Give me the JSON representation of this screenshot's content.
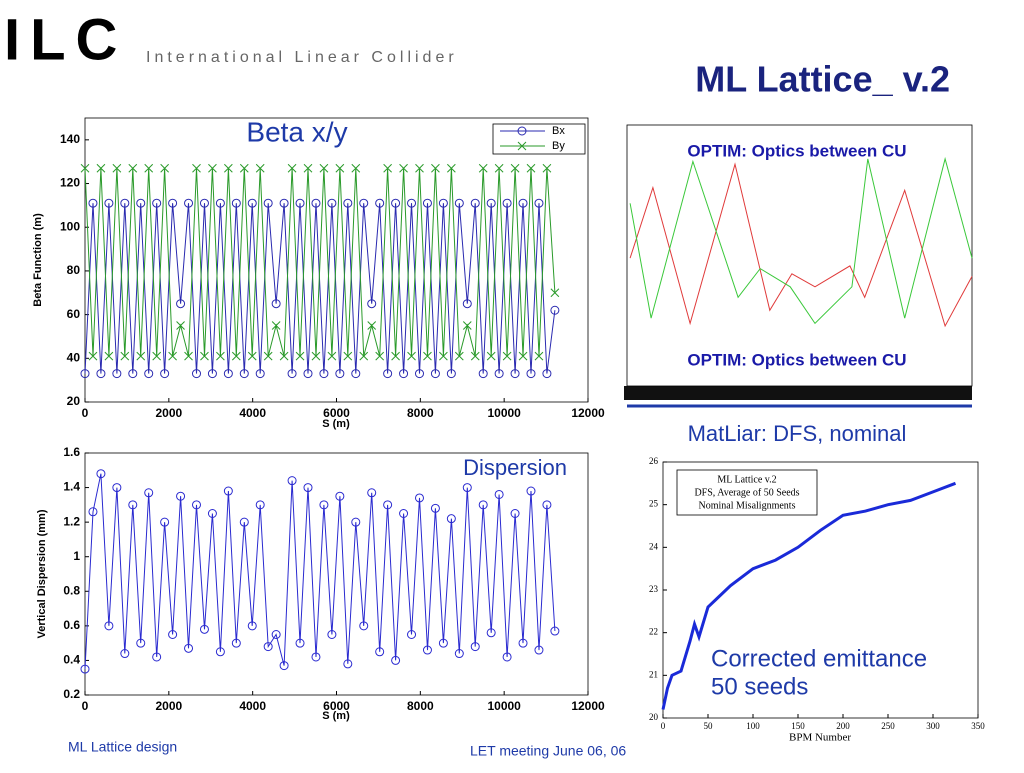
{
  "header": {
    "logo": "ILC",
    "subtitle": "International Linear Collider",
    "title": "ML Lattice_ v.2"
  },
  "footer": {
    "left": "ML Lattice design",
    "center": "LET meeting June 06, 06"
  },
  "chart_data": [
    {
      "type": "line",
      "title": "Beta x/y",
      "xlabel": "S (m)",
      "ylabel": "Beta Function (m)",
      "xlim": [
        0,
        12000
      ],
      "xticks": [
        0,
        2000,
        4000,
        6000,
        8000,
        10000,
        12000
      ],
      "ylim": [
        20,
        150
      ],
      "yticks": [
        20,
        40,
        60,
        80,
        100,
        120,
        140
      ],
      "x": [
        0,
        190,
        380,
        570,
        760,
        950,
        1140,
        1330,
        1520,
        1710,
        1900,
        2090,
        2280,
        2470,
        2660,
        2850,
        3040,
        3230,
        3420,
        3610,
        3800,
        3990,
        4180,
        4370,
        4560,
        4750,
        4940,
        5130,
        5320,
        5510,
        5700,
        5890,
        6080,
        6270,
        6460,
        6650,
        6840,
        7030,
        7220,
        7410,
        7600,
        7790,
        7980,
        8170,
        8360,
        8550,
        8740,
        8930,
        9120,
        9310,
        9500,
        9690,
        9880,
        10070,
        10260,
        10450,
        10640,
        10830,
        11020,
        11210
      ],
      "series": [
        {
          "name": "Bx",
          "color": "#2a2ab0",
          "marker": "o",
          "values": [
            33,
            111,
            33,
            111,
            33,
            111,
            33,
            111,
            33,
            111,
            33,
            111,
            65,
            111,
            33,
            111,
            33,
            111,
            33,
            111,
            33,
            111,
            33,
            111,
            65,
            111,
            33,
            111,
            33,
            111,
            33,
            111,
            33,
            111,
            33,
            111,
            65,
            111,
            33,
            111,
            33,
            111,
            33,
            111,
            33,
            111,
            33,
            111,
            65,
            111,
            33,
            111,
            33,
            111,
            33,
            111,
            33,
            111,
            33,
            62
          ]
        },
        {
          "name": "By",
          "color": "#2a9a2a",
          "marker": "x",
          "values": [
            127,
            41,
            127,
            41,
            127,
            41,
            127,
            41,
            127,
            41,
            127,
            41,
            55,
            41,
            127,
            41,
            127,
            41,
            127,
            41,
            127,
            41,
            127,
            41,
            55,
            41,
            127,
            41,
            127,
            41,
            127,
            41,
            127,
            41,
            127,
            41,
            55,
            41,
            127,
            41,
            127,
            41,
            127,
            41,
            127,
            41,
            127,
            41,
            55,
            41,
            127,
            41,
            127,
            41,
            127,
            41,
            127,
            41,
            127,
            70
          ]
        }
      ]
    },
    {
      "type": "line",
      "title": "Dispersion",
      "xlabel": "S (m)",
      "ylabel": "Vertical Dispersion (mm)",
      "xlim": [
        0,
        12000
      ],
      "xticks": [
        0,
        2000,
        4000,
        6000,
        8000,
        10000,
        12000
      ],
      "ylim": [
        0.2,
        1.6
      ],
      "yticks": [
        0.2,
        0.4,
        0.6,
        0.8,
        1,
        1.2,
        1.4,
        1.6
      ],
      "x": [
        0,
        190,
        380,
        570,
        760,
        950,
        1140,
        1330,
        1520,
        1710,
        1900,
        2090,
        2280,
        2470,
        2660,
        2850,
        3040,
        3230,
        3420,
        3610,
        3800,
        3990,
        4180,
        4370,
        4560,
        4750,
        4940,
        5130,
        5320,
        5510,
        5700,
        5890,
        6080,
        6270,
        6460,
        6650,
        6840,
        7030,
        7220,
        7410,
        7600,
        7790,
        7980,
        8170,
        8360,
        8550,
        8740,
        8930,
        9120,
        9310,
        9500,
        9690,
        9880,
        10070,
        10260,
        10450,
        10640,
        10830,
        11020,
        11210
      ],
      "series": [
        {
          "name": null,
          "color": "#2a2ad0",
          "marker": "o",
          "values": [
            0.35,
            1.26,
            1.48,
            0.6,
            1.4,
            0.44,
            1.3,
            0.5,
            1.37,
            0.42,
            1.2,
            0.55,
            1.35,
            0.47,
            1.3,
            0.58,
            1.25,
            0.45,
            1.38,
            0.5,
            1.2,
            0.6,
            1.3,
            0.48,
            0.55,
            0.37,
            1.44,
            0.5,
            1.4,
            0.42,
            1.3,
            0.55,
            1.35,
            0.38,
            1.2,
            0.6,
            1.37,
            0.45,
            1.3,
            0.4,
            1.25,
            0.55,
            1.34,
            0.46,
            1.28,
            0.5,
            1.22,
            0.44,
            1.4,
            0.48,
            1.3,
            0.56,
            1.36,
            0.42,
            1.25,
            0.5,
            1.38,
            0.46,
            1.3,
            0.57
          ]
        }
      ]
    },
    {
      "type": "line",
      "annotations": [
        "OPTIM: Optics between CU",
        "OPTIM: Optics between CU"
      ],
      "xlim": [
        0,
        100
      ],
      "ylim": [
        0,
        100
      ],
      "series": [
        {
          "name": null,
          "color": "#e03a3a",
          "x": [
            0.9,
            7.5,
            18.3,
            31.3,
            41.4,
            47.8,
            54.5,
            64.6,
            68.9,
            80.5,
            92.2,
            100
          ],
          "values": [
            49,
            76,
            24,
            85,
            29,
            43,
            38,
            46,
            34,
            75,
            23,
            42
          ]
        },
        {
          "name": null,
          "color": "#3ac83a",
          "x": [
            0.9,
            7,
            19.1,
            32.2,
            38.6,
            47.3,
            54.5,
            65.2,
            69.8,
            80.5,
            92.2,
            100
          ],
          "values": [
            70,
            26,
            86,
            34,
            45,
            38,
            24,
            38,
            87,
            26,
            87,
            49
          ]
        }
      ]
    },
    {
      "type": "line",
      "title": "MatLiar: DFS, nominal",
      "xlabel": "BPM Number",
      "legend_text": [
        "ML Lattice v.2",
        "DFS, Average of 50 Seeds",
        "Nominal Misalignments"
      ],
      "annotations": [
        "Corrected emittance",
        "50 seeds"
      ],
      "xlim": [
        0,
        350
      ],
      "xticks": [
        0,
        50,
        100,
        150,
        200,
        250,
        300,
        350
      ],
      "ylim": [
        20,
        26
      ],
      "yticks": [
        20,
        21,
        22,
        23,
        24,
        25,
        26
      ],
      "x": [
        0,
        5,
        10,
        20,
        30,
        35,
        40,
        50,
        60,
        75,
        100,
        125,
        150,
        175,
        200,
        225,
        250,
        275,
        300,
        325
      ],
      "series": [
        {
          "name": null,
          "color": "#1a2ad8",
          "width": 3,
          "values": [
            20.2,
            20.7,
            21.0,
            21.1,
            21.8,
            22.2,
            21.9,
            22.6,
            22.8,
            23.1,
            23.5,
            23.7,
            24.0,
            24.4,
            24.75,
            24.85,
            25.0,
            25.1,
            25.3,
            25.5
          ]
        }
      ]
    }
  ]
}
